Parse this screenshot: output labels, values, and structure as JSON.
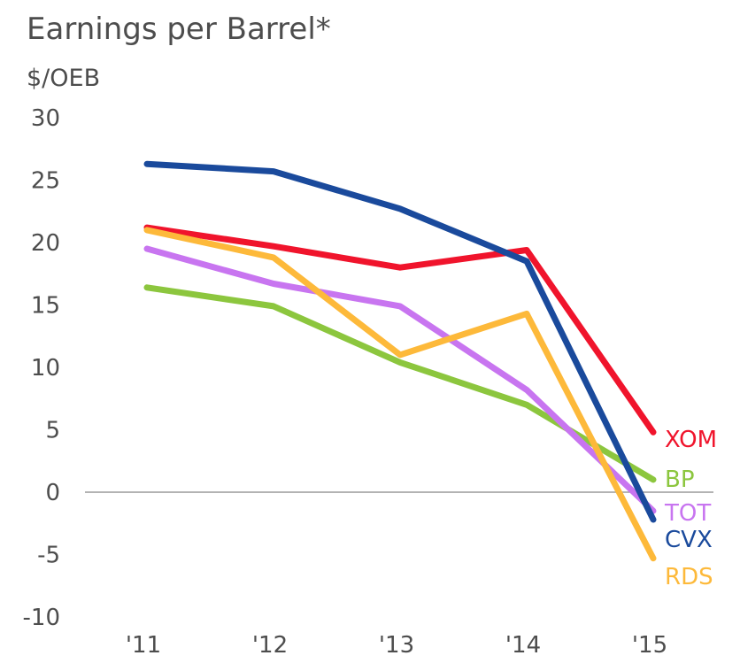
{
  "chart_data": {
    "type": "line",
    "title": "Earnings per Barrel*",
    "ylabel": "$/OEB",
    "xlabel": "",
    "categories": [
      "'11",
      "'12",
      "'13",
      "'14",
      "'15"
    ],
    "yticks": [
      "30",
      "25",
      "20",
      "15",
      "10",
      "5",
      "0",
      "-5",
      "-10"
    ],
    "ylim": [
      -10,
      30
    ],
    "grid": false,
    "legend": "end-of-line labels",
    "series": [
      {
        "name": "XOM",
        "color": "#f0142c",
        "values": [
          21.2,
          19.7,
          18.0,
          19.4,
          4.8
        ]
      },
      {
        "name": "BP",
        "color": "#8cc63e",
        "values": [
          16.4,
          14.9,
          10.4,
          7.0,
          1.0
        ]
      },
      {
        "name": "TOT",
        "color": "#c875f0",
        "values": [
          19.5,
          16.7,
          14.9,
          8.2,
          -1.5
        ]
      },
      {
        "name": "CVX",
        "color": "#1a4a9c",
        "values": [
          26.3,
          25.7,
          22.7,
          18.5,
          -2.2
        ]
      },
      {
        "name": "RDS",
        "color": "#fdb93a",
        "values": [
          21.0,
          18.8,
          11.0,
          14.3,
          -5.3
        ]
      }
    ]
  }
}
